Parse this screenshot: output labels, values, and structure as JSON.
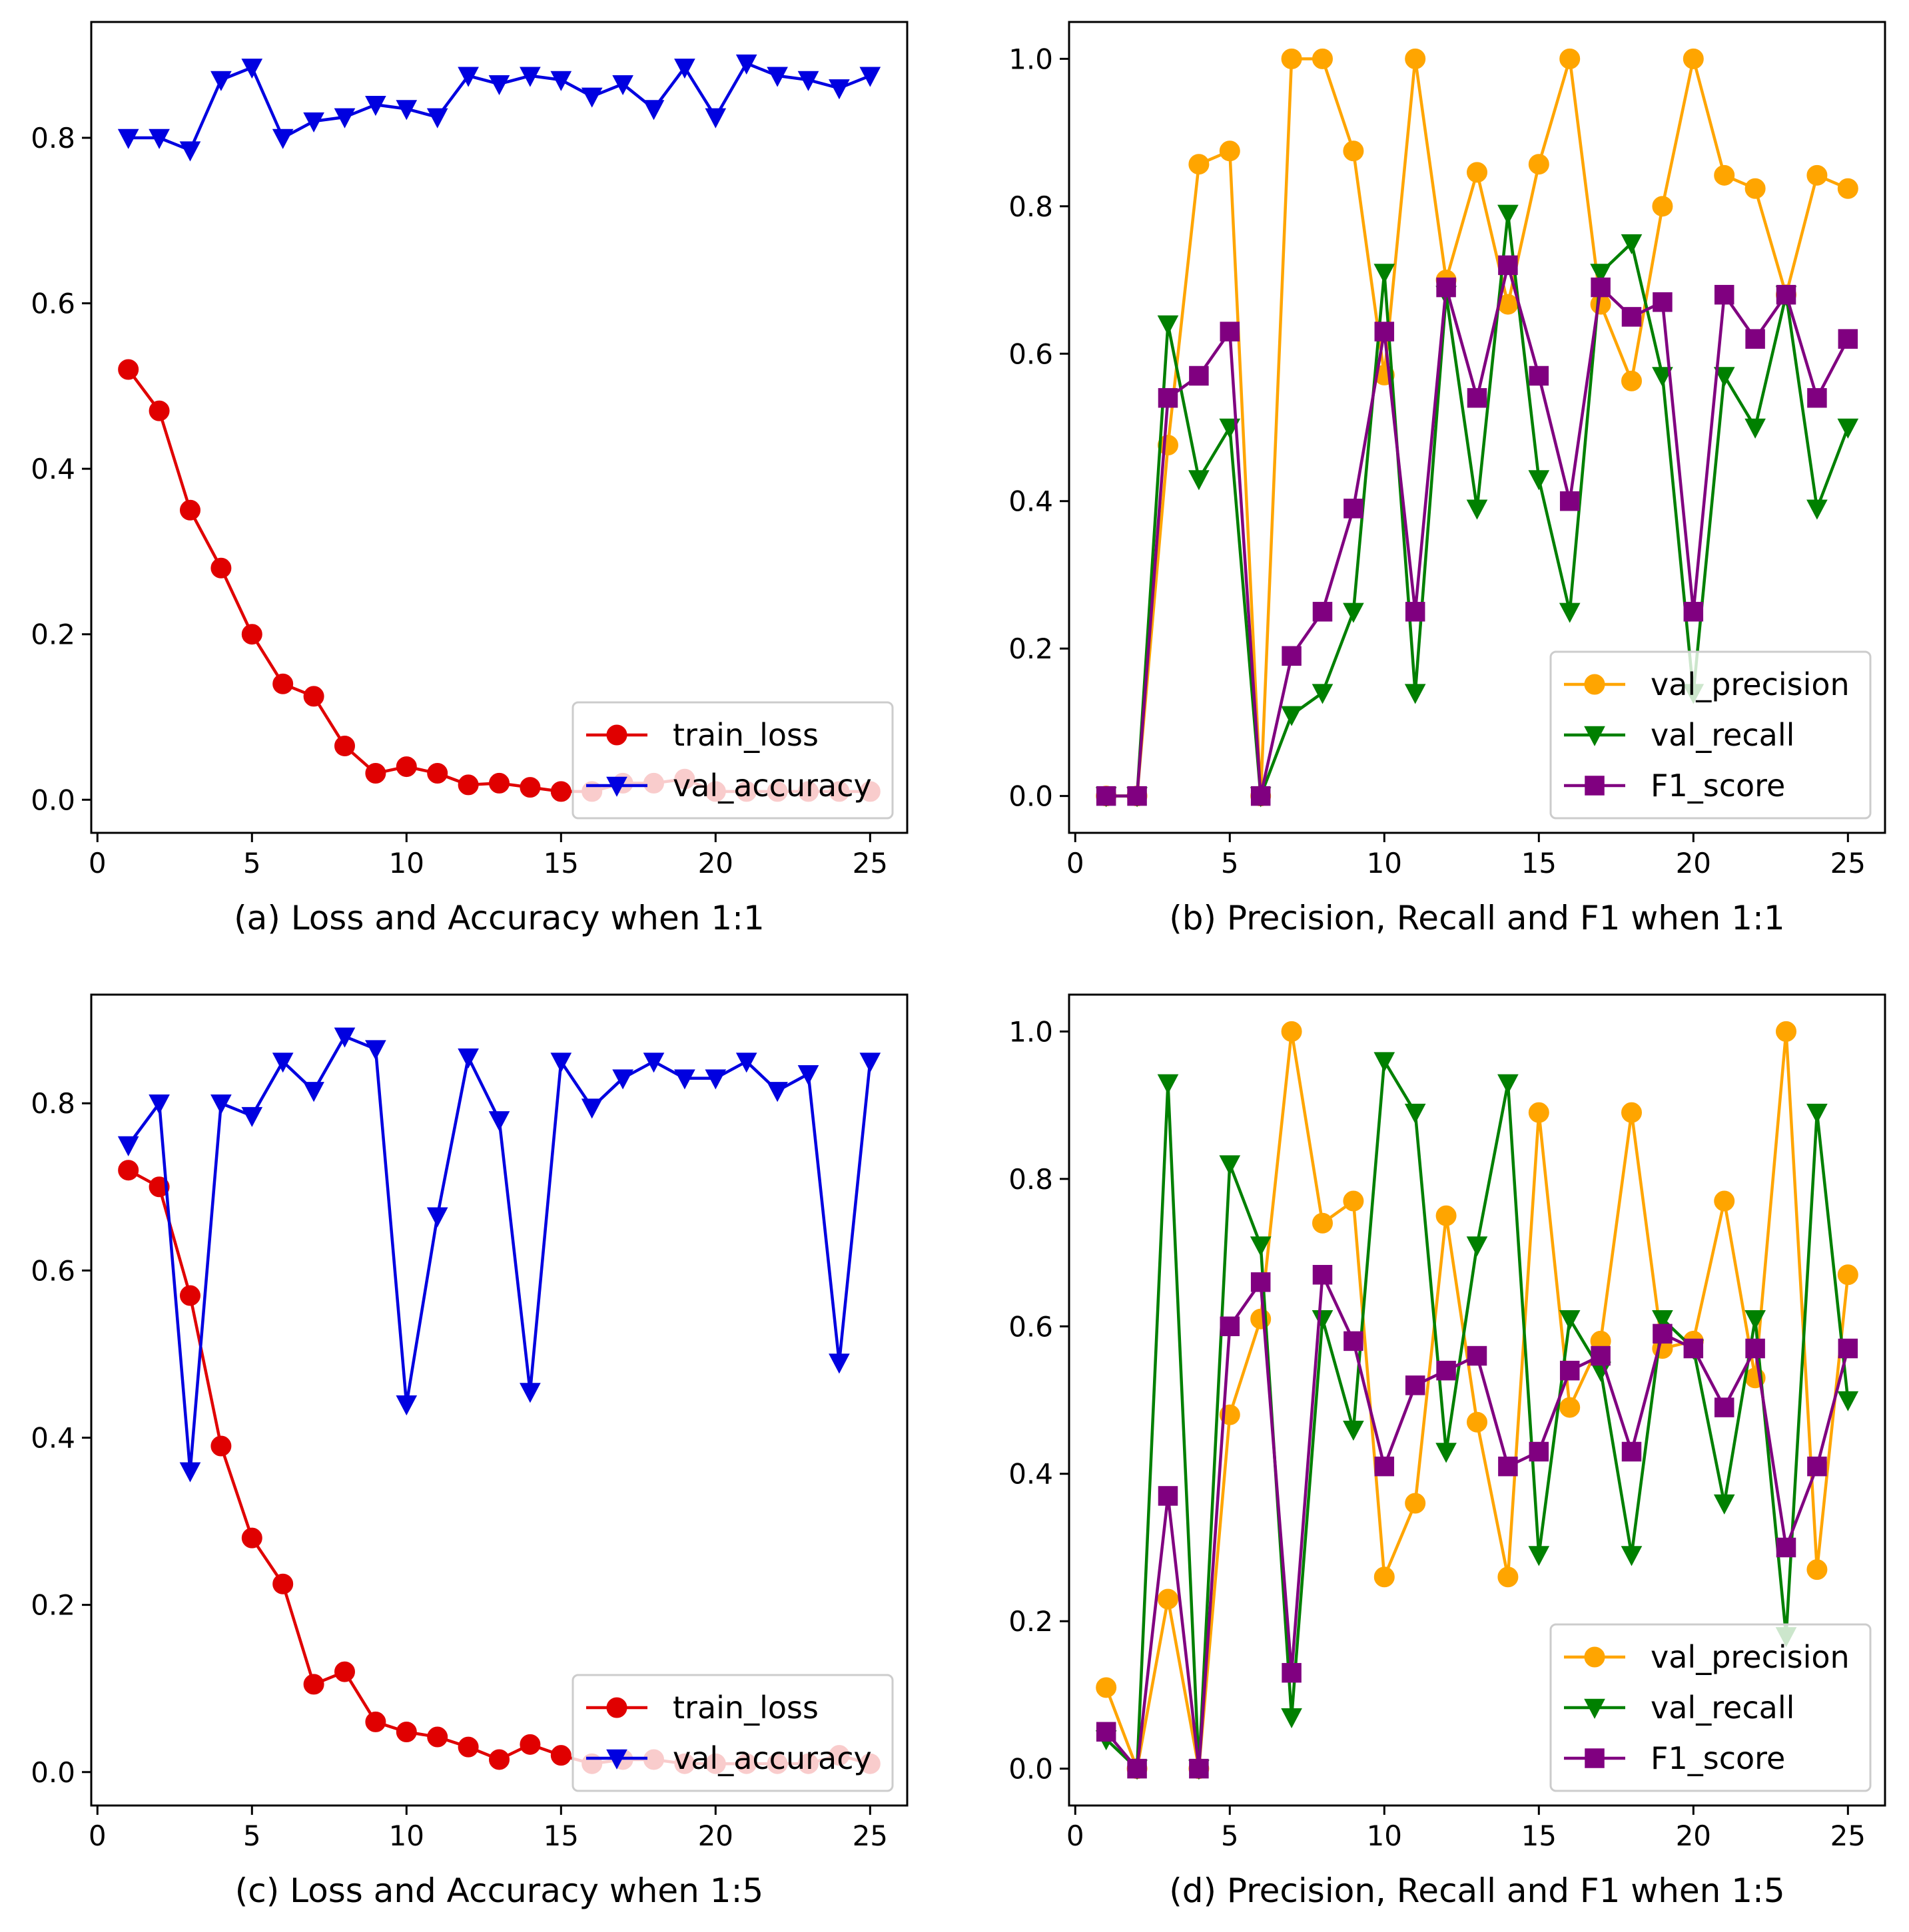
{
  "chart_data": [
    {
      "type": "line",
      "caption": "(a) Loss and Accuracy when 1:1",
      "xlim": [
        -0.2,
        26.2
      ],
      "ylim": [
        -0.04,
        0.94
      ],
      "xticks": [
        0,
        5,
        10,
        15,
        20,
        25
      ],
      "yticks": [
        0.0,
        0.2,
        0.4,
        0.6,
        0.8
      ],
      "ytick_format": "1",
      "legend_position": "lower right",
      "x": [
        1,
        2,
        3,
        4,
        5,
        6,
        7,
        8,
        9,
        10,
        11,
        12,
        13,
        14,
        15,
        16,
        17,
        18,
        19,
        20,
        21,
        22,
        23,
        24,
        25
      ],
      "series": [
        {
          "name": "train_loss",
          "color": "#e00000",
          "marker": "circle",
          "values": [
            0.52,
            0.47,
            0.35,
            0.28,
            0.2,
            0.14,
            0.125,
            0.065,
            0.032,
            0.04,
            0.032,
            0.018,
            0.02,
            0.015,
            0.01,
            0.01,
            0.02,
            0.02,
            0.025,
            0.01,
            0.01,
            0.01,
            0.01,
            0.01,
            0.01
          ]
        },
        {
          "name": "val_accuracy",
          "color": "#0000e0",
          "marker": "triangle-down",
          "values": [
            0.8,
            0.8,
            0.785,
            0.87,
            0.885,
            0.8,
            0.82,
            0.825,
            0.84,
            0.835,
            0.825,
            0.875,
            0.865,
            0.875,
            0.87,
            0.85,
            0.865,
            0.835,
            0.885,
            0.825,
            0.89,
            0.875,
            0.87,
            0.86,
            0.875
          ]
        }
      ]
    },
    {
      "type": "line",
      "caption": "(b) Precision, Recall and F1 when 1:1",
      "xlim": [
        -0.2,
        26.2
      ],
      "ylim": [
        -0.05,
        1.05
      ],
      "xticks": [
        0,
        5,
        10,
        15,
        20,
        25
      ],
      "yticks": [
        0.0,
        0.2,
        0.4,
        0.6,
        0.8,
        1.0
      ],
      "ytick_format": "1",
      "legend_position": "lower right",
      "x": [
        1,
        2,
        3,
        4,
        5,
        6,
        7,
        8,
        9,
        10,
        11,
        12,
        13,
        14,
        15,
        16,
        17,
        18,
        19,
        20,
        21,
        22,
        23,
        24,
        25
      ],
      "series": [
        {
          "name": "val_precision",
          "color": "#ffa500",
          "marker": "circle",
          "values": [
            0,
            0,
            0.476,
            0.857,
            0.875,
            0,
            1.0,
            1.0,
            0.875,
            0.571,
            1.0,
            0.7,
            0.846,
            0.667,
            0.857,
            1.0,
            0.667,
            0.563,
            0.8,
            1.0,
            0.842,
            0.824,
            0.68,
            0.842,
            0.824
          ]
        },
        {
          "name": "val_recall",
          "color": "#008000",
          "marker": "triangle-down",
          "values": [
            0,
            0,
            0.64,
            0.43,
            0.5,
            0,
            0.11,
            0.14,
            0.25,
            0.71,
            0.14,
            0.68,
            0.39,
            0.79,
            0.43,
            0.25,
            0.71,
            0.75,
            0.57,
            0.14,
            0.57,
            0.5,
            0.68,
            0.39,
            0.5
          ]
        },
        {
          "name": "F1_score",
          "color": "#800080",
          "marker": "square",
          "values": [
            0,
            0,
            0.54,
            0.57,
            0.63,
            0,
            0.19,
            0.25,
            0.39,
            0.63,
            0.25,
            0.69,
            0.54,
            0.72,
            0.57,
            0.4,
            0.69,
            0.65,
            0.67,
            0.25,
            0.68,
            0.62,
            0.68,
            0.54,
            0.62
          ]
        }
      ]
    },
    {
      "type": "line",
      "caption": "(c) Loss and Accuracy when 1:5",
      "xlim": [
        -0.2,
        26.2
      ],
      "ylim": [
        -0.04,
        0.93
      ],
      "xticks": [
        0,
        5,
        10,
        15,
        20,
        25
      ],
      "yticks": [
        0.0,
        0.2,
        0.4,
        0.6,
        0.8
      ],
      "ytick_format": "1",
      "legend_position": "lower right",
      "x": [
        1,
        2,
        3,
        4,
        5,
        6,
        7,
        8,
        9,
        10,
        11,
        12,
        13,
        14,
        15,
        16,
        17,
        18,
        19,
        20,
        21,
        22,
        23,
        24,
        25
      ],
      "series": [
        {
          "name": "train_loss",
          "color": "#e00000",
          "marker": "circle",
          "values": [
            0.72,
            0.7,
            0.57,
            0.39,
            0.28,
            0.225,
            0.105,
            0.12,
            0.06,
            0.048,
            0.042,
            0.03,
            0.015,
            0.033,
            0.02,
            0.01,
            0.015,
            0.015,
            0.01,
            0.01,
            0.01,
            0.01,
            0.01,
            0.02,
            0.01
          ]
        },
        {
          "name": "val_accuracy",
          "color": "#0000e0",
          "marker": "triangle-down",
          "values": [
            0.75,
            0.8,
            0.36,
            0.8,
            0.785,
            0.85,
            0.815,
            0.88,
            0.865,
            0.44,
            0.665,
            0.855,
            0.78,
            0.455,
            0.85,
            0.795,
            0.83,
            0.85,
            0.83,
            0.83,
            0.85,
            0.815,
            0.835,
            0.49,
            0.85
          ]
        }
      ]
    },
    {
      "type": "line",
      "caption": "(d) Precision, Recall and F1 when 1:5",
      "xlim": [
        -0.2,
        26.2
      ],
      "ylim": [
        -0.05,
        1.05
      ],
      "xticks": [
        0,
        5,
        10,
        15,
        20,
        25
      ],
      "yticks": [
        0.0,
        0.2,
        0.4,
        0.6,
        0.8,
        1.0
      ],
      "ytick_format": "1",
      "legend_position": "lower right",
      "x": [
        1,
        2,
        3,
        4,
        5,
        6,
        7,
        8,
        9,
        10,
        11,
        12,
        13,
        14,
        15,
        16,
        17,
        18,
        19,
        20,
        21,
        22,
        23,
        24,
        25
      ],
      "series": [
        {
          "name": "val_precision",
          "color": "#ffa500",
          "marker": "circle",
          "values": [
            0.11,
            0,
            0.23,
            0,
            0.48,
            0.61,
            1.0,
            0.74,
            0.77,
            0.26,
            0.36,
            0.75,
            0.47,
            0.26,
            0.89,
            0.49,
            0.58,
            0.89,
            0.57,
            0.58,
            0.77,
            0.53,
            1.0,
            0.27,
            0.67
          ]
        },
        {
          "name": "val_recall",
          "color": "#008000",
          "marker": "triangle-down",
          "values": [
            0.04,
            0,
            0.93,
            0,
            0.82,
            0.71,
            0.07,
            0.61,
            0.46,
            0.96,
            0.89,
            0.43,
            0.71,
            0.93,
            0.29,
            0.61,
            0.54,
            0.29,
            0.61,
            0.57,
            0.36,
            0.61,
            0.18,
            0.89,
            0.5
          ]
        },
        {
          "name": "F1_score",
          "color": "#800080",
          "marker": "square",
          "values": [
            0.05,
            0,
            0.37,
            0,
            0.6,
            0.66,
            0.13,
            0.67,
            0.58,
            0.41,
            0.52,
            0.54,
            0.56,
            0.41,
            0.43,
            0.54,
            0.56,
            0.43,
            0.59,
            0.57,
            0.49,
            0.57,
            0.3,
            0.41,
            0.57
          ]
        }
      ]
    }
  ]
}
